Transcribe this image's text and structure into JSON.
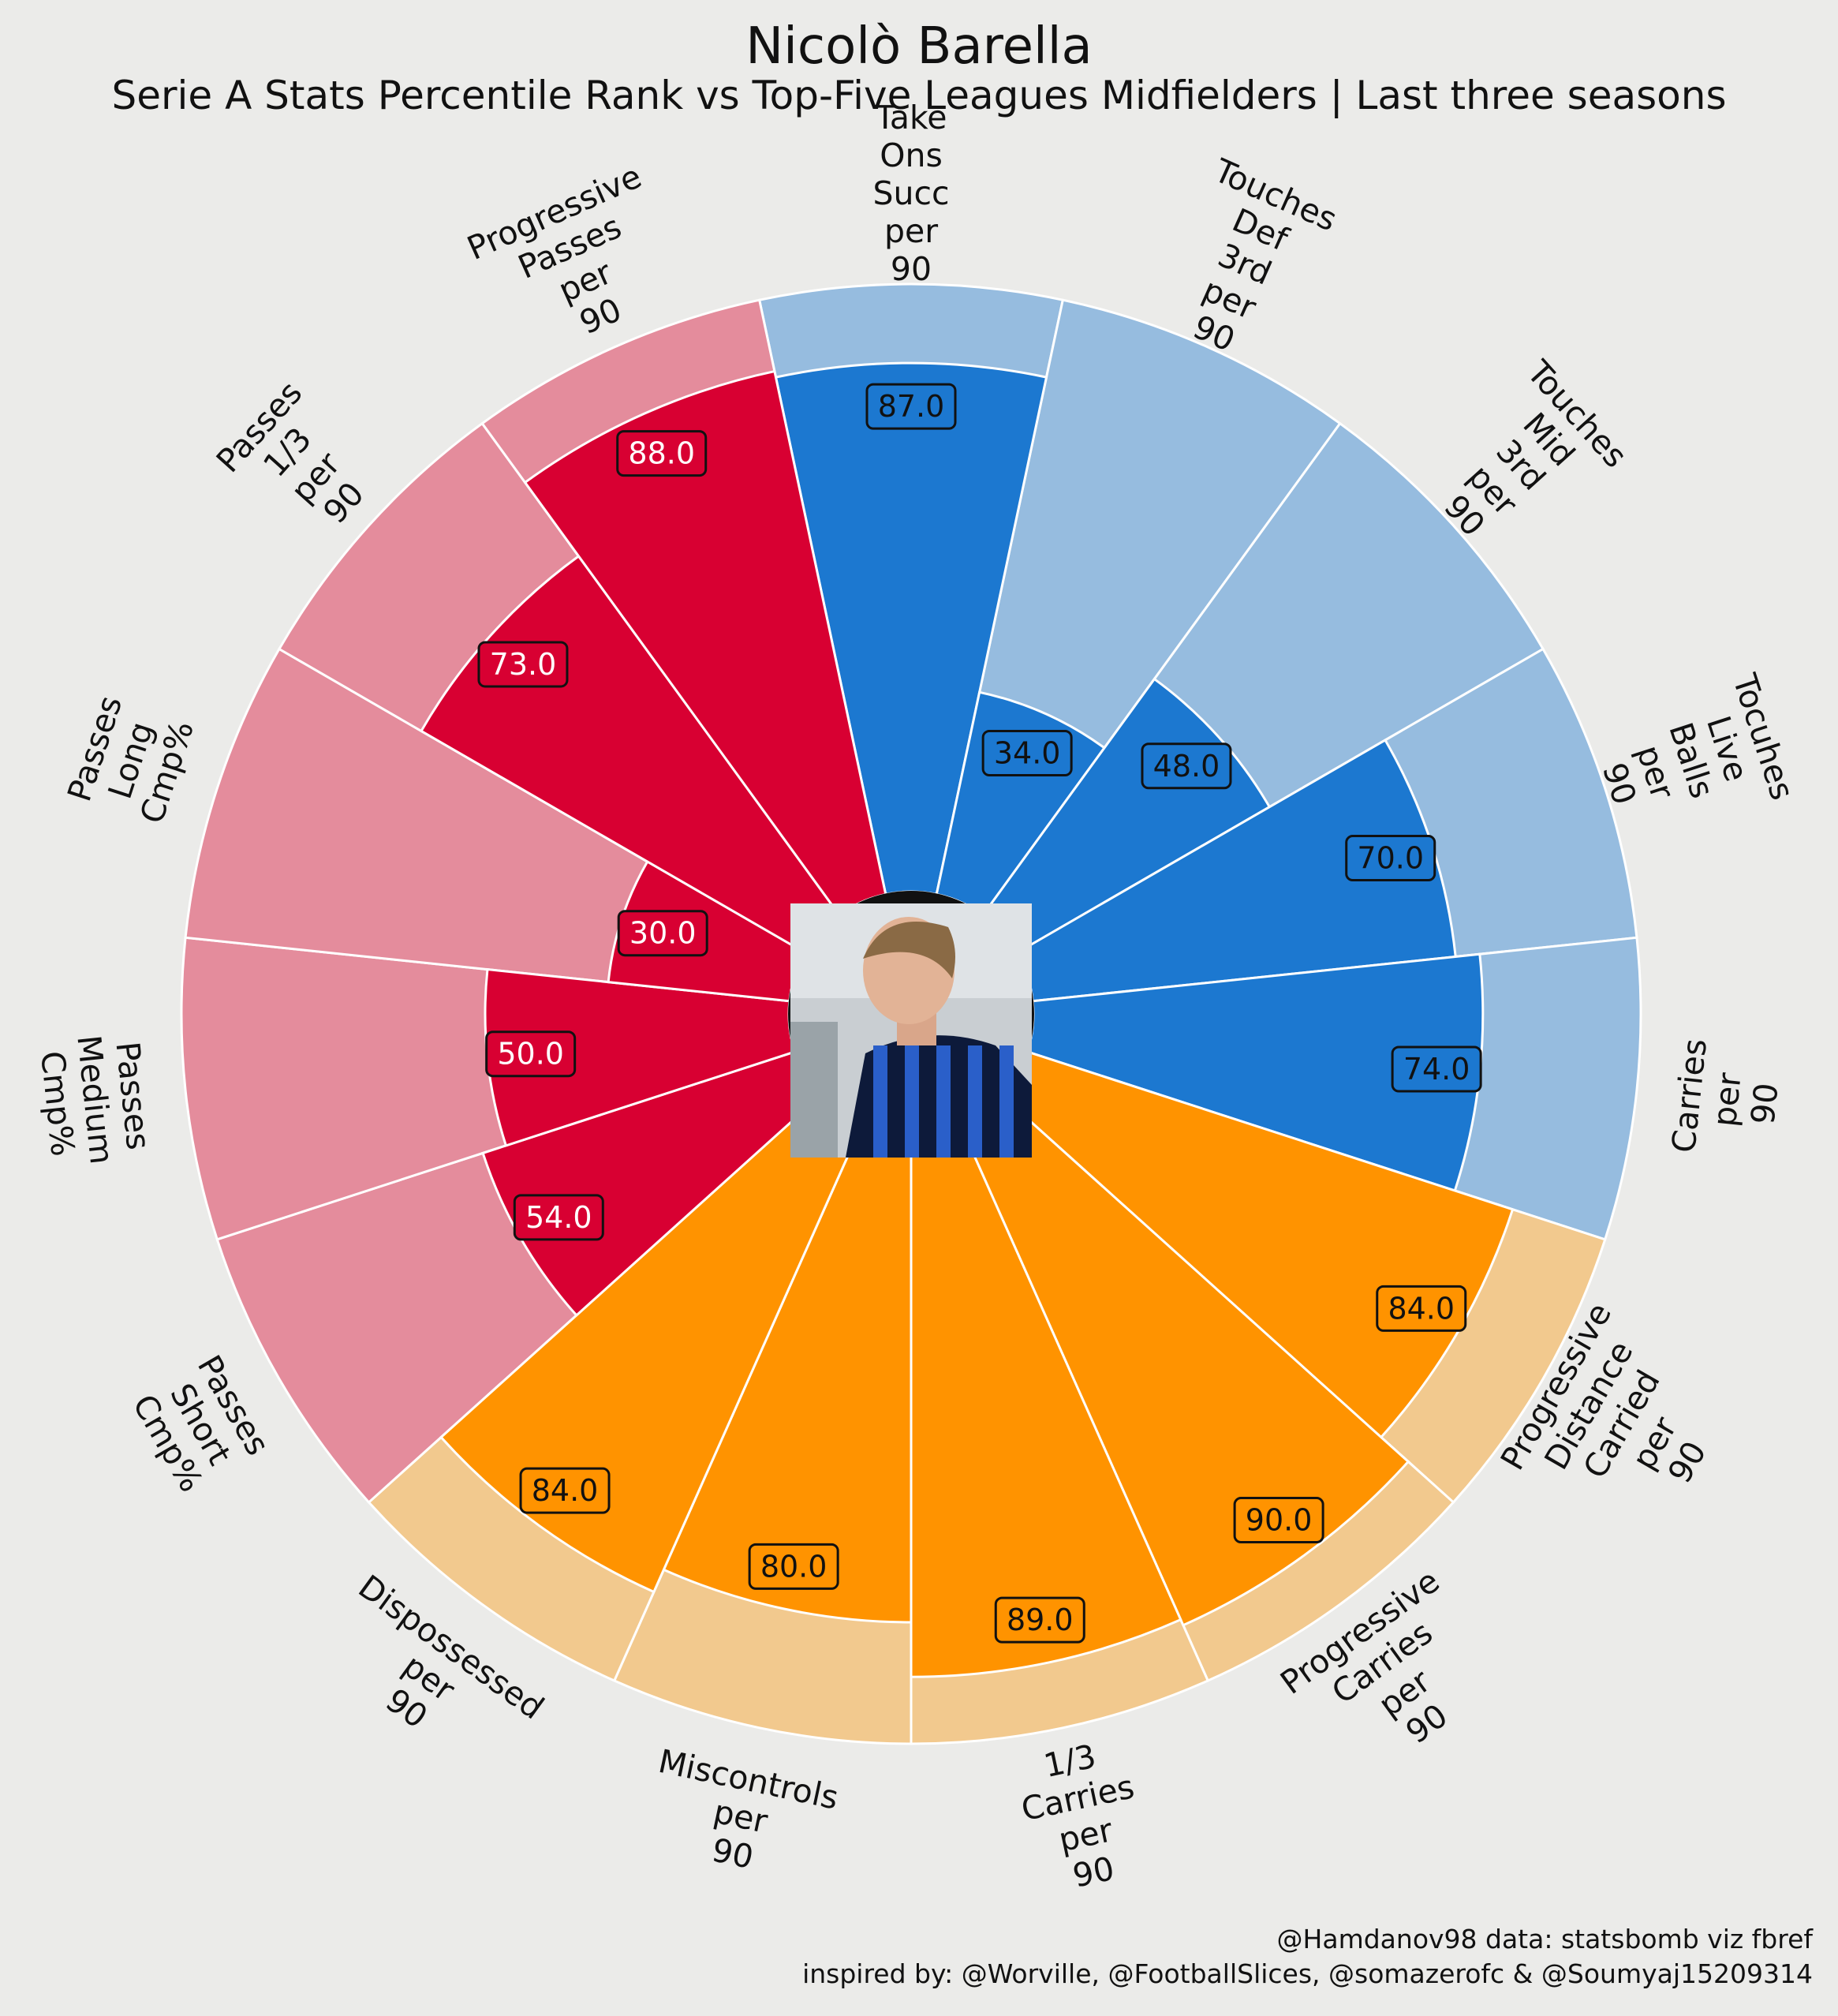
{
  "title": "Nicolò Barella",
  "subtitle": "Serie A Stats Percentile Rank vs Top-Five Leagues Midfielders | Last three seasons",
  "credits": {
    "line1": "@Hamdanov98 data: statsbomb viz fbref",
    "line2": "inspired by: @Worville, @FootballSlices, @somazerofc & @Soumyaj15209314"
  },
  "colors": {
    "background": "#ebebe9",
    "passing_bar": "#d80032",
    "passing_bg": "#e48c9c",
    "possession_bar": "#1c78d0",
    "possession_bg": "#96bcdf",
    "carrying_bar": "#ff9300",
    "carrying_bg": "#f2c98e"
  },
  "player_photo_icon": "player-photo-icon",
  "chart_data": {
    "type": "radial-bar",
    "scale_max": 100,
    "label_lines": true,
    "params": [
      {
        "label": [
          "Take",
          "Ons",
          "Succ",
          "per",
          "90"
        ],
        "value": 87.0,
        "group": "possession"
      },
      {
        "label": [
          "Touches",
          "Def",
          "3rd",
          "per",
          "90"
        ],
        "value": 34.0,
        "group": "possession"
      },
      {
        "label": [
          "Touches",
          "Mid",
          "3rd",
          "per",
          "90"
        ],
        "value": 48.0,
        "group": "possession"
      },
      {
        "label": [
          "Tocuhes",
          "Live",
          "Balls",
          "per",
          "90"
        ],
        "value": 70.0,
        "group": "possession"
      },
      {
        "label": [
          "Carries",
          "per",
          "90"
        ],
        "value": 74.0,
        "group": "possession"
      },
      {
        "label": [
          "Progressive",
          "Distance",
          "Carried",
          "per",
          "90"
        ],
        "value": 84.0,
        "group": "carrying"
      },
      {
        "label": [
          "Progressive",
          "Carries",
          "per",
          "90"
        ],
        "value": 90.0,
        "group": "carrying"
      },
      {
        "label": [
          "1/3",
          "Carries",
          "per",
          "90"
        ],
        "value": 89.0,
        "group": "carrying"
      },
      {
        "label": [
          "Miscontrols",
          "per",
          "90"
        ],
        "value": 80.0,
        "group": "carrying"
      },
      {
        "label": [
          "Dispossessed",
          "per",
          "90"
        ],
        "value": 84.0,
        "group": "carrying"
      },
      {
        "label": [
          "Passes",
          "Short",
          "Cmp%"
        ],
        "value": 54.0,
        "group": "passing"
      },
      {
        "label": [
          "Passes",
          "Medium",
          "Cmp%"
        ],
        "value": 50.0,
        "group": "passing"
      },
      {
        "label": [
          "Passes",
          "Long",
          "Cmp%"
        ],
        "value": 30.0,
        "group": "passing"
      },
      {
        "label": [
          "Passes",
          "1/3",
          "per",
          "90"
        ],
        "value": 73.0,
        "group": "passing"
      },
      {
        "label": [
          "Progressive",
          "Passes",
          "per",
          "90"
        ],
        "value": 88.0,
        "group": "passing"
      }
    ]
  }
}
